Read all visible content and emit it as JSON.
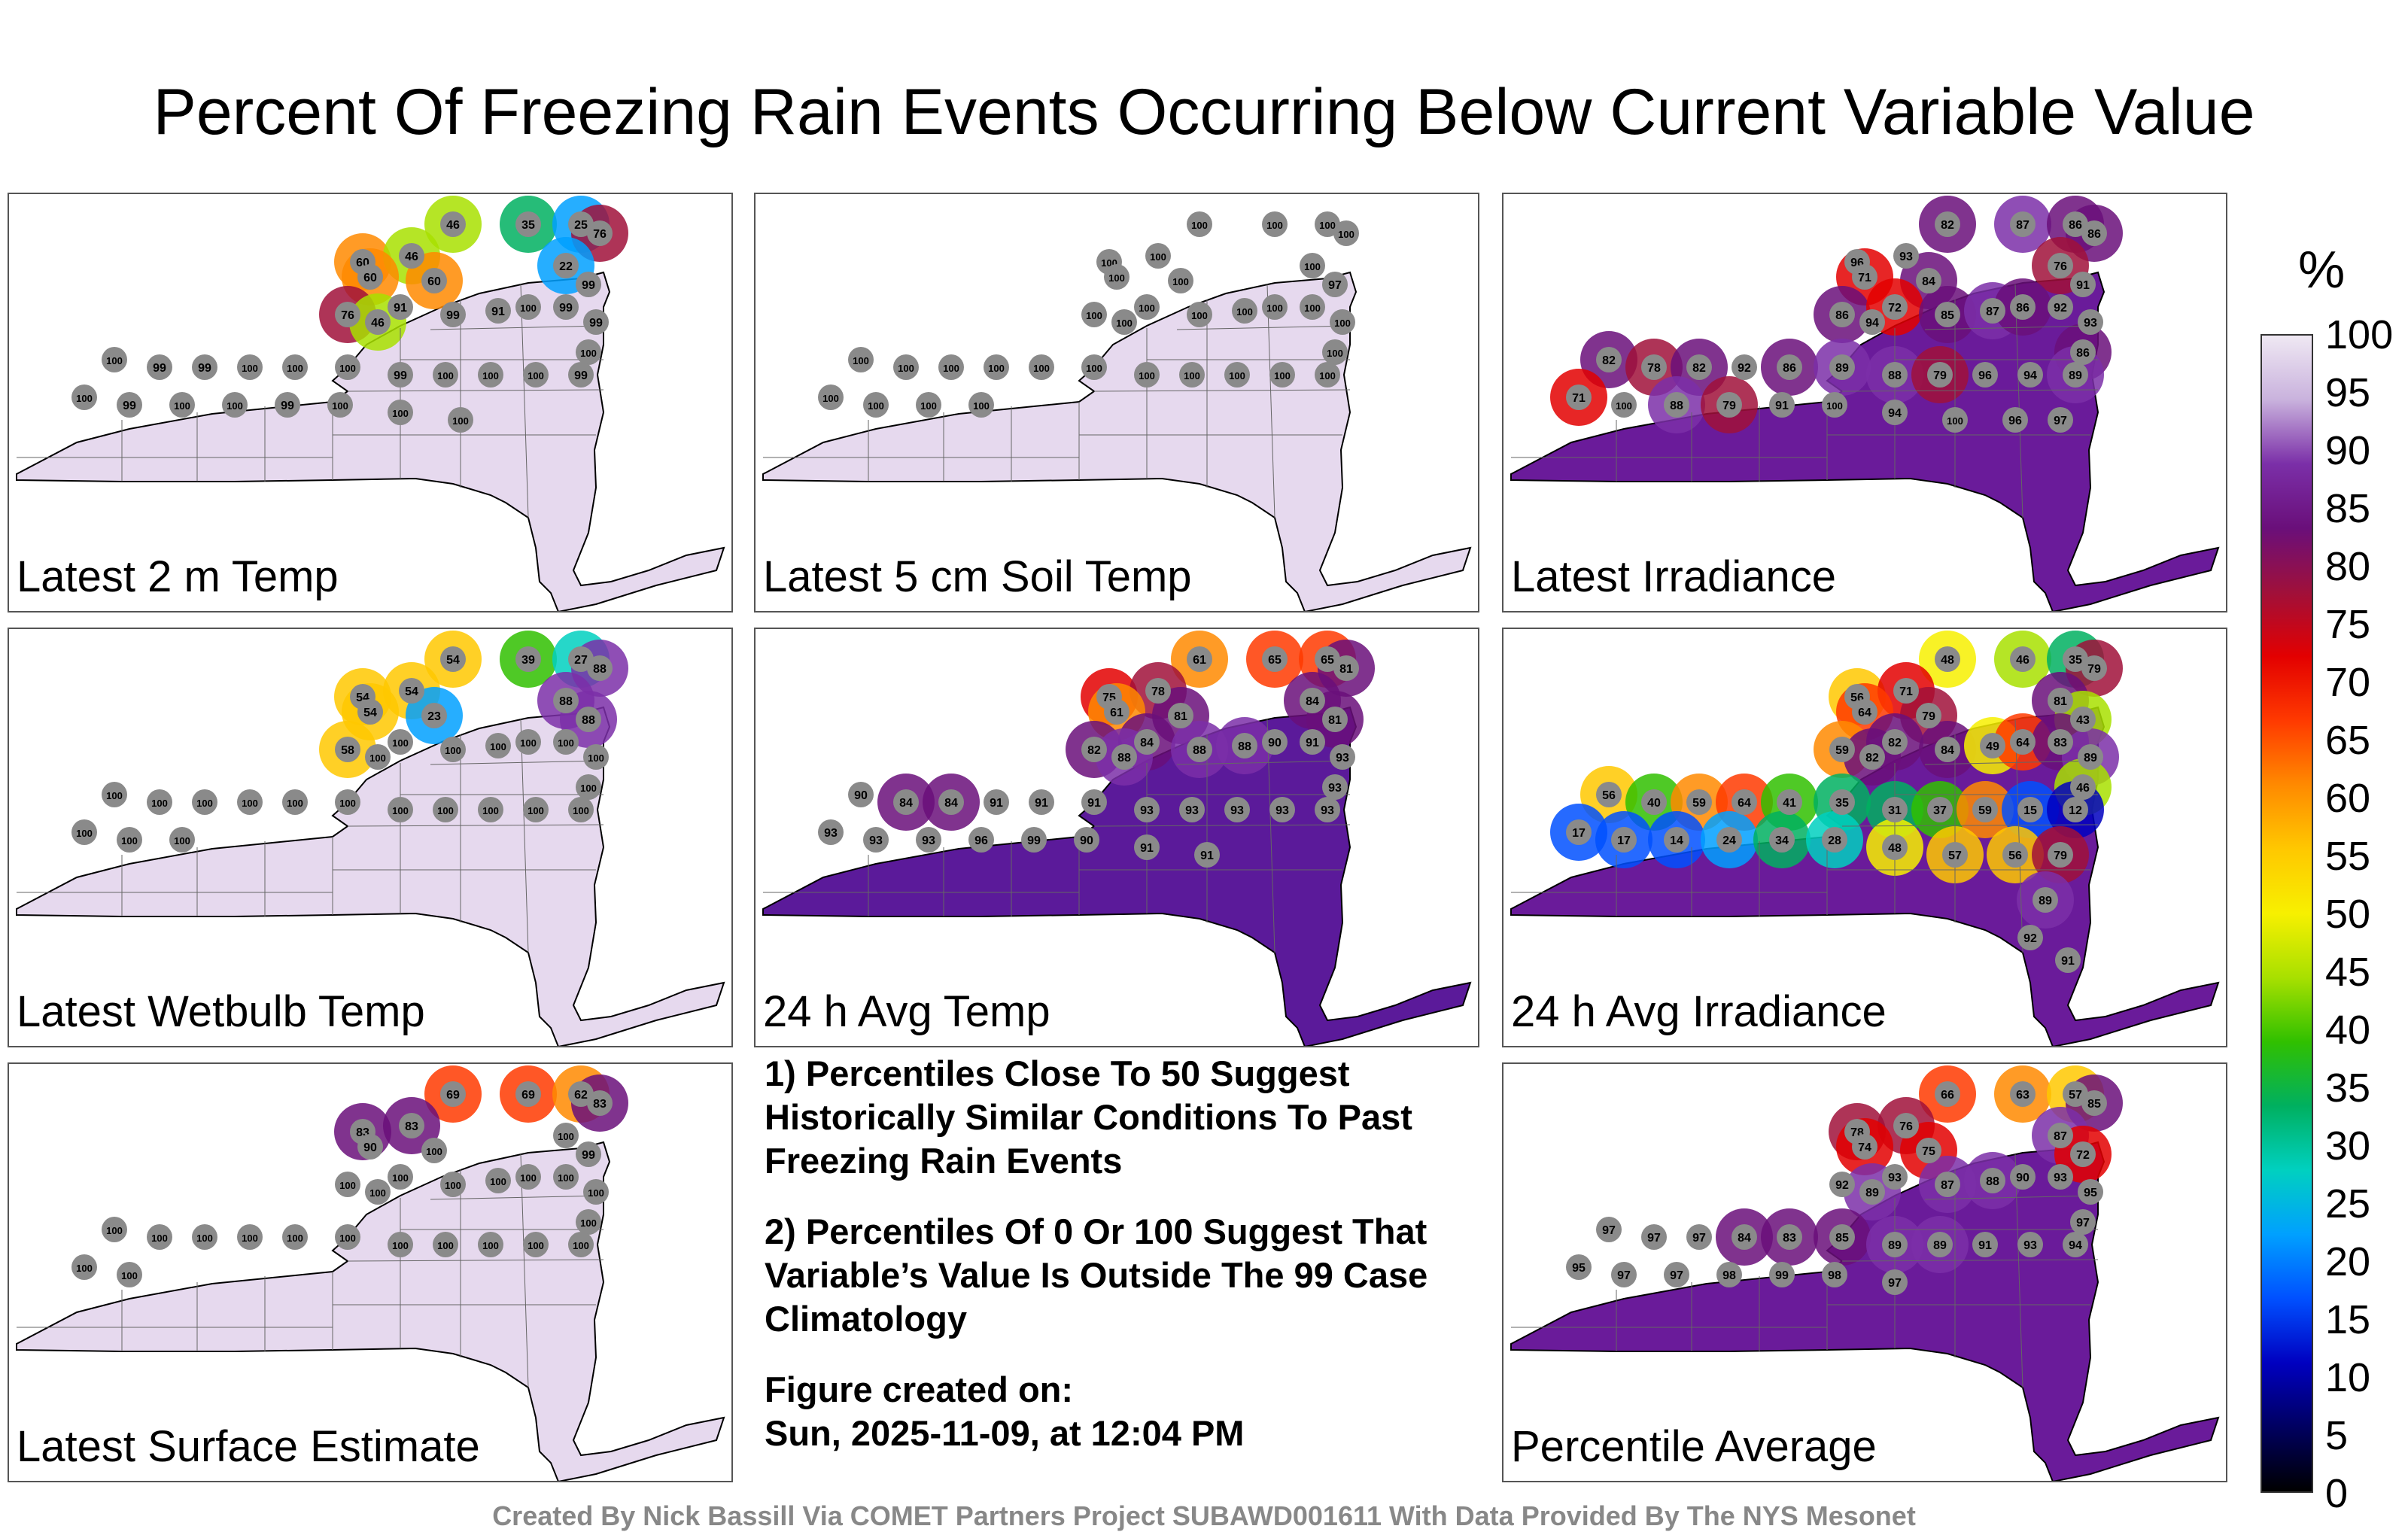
{
  "title": "Percent Of Freezing Rain Events Occurring Below Current Variable Value",
  "panels": [
    {
      "label": "Latest 2 m Temp",
      "fill": "#e6d9ee",
      "stations": [
        "46",
        "35",
        "25",
        "76",
        "60",
        "46",
        "60",
        "60",
        "22",
        "99",
        "76",
        "91",
        "46",
        "99",
        "91",
        "100",
        "99",
        "99",
        "100",
        "100",
        "99",
        "99",
        "100",
        "100",
        "100",
        "99",
        "100",
        "100",
        "100",
        "99",
        "100",
        "99",
        "100",
        "100",
        "99",
        "100",
        "100",
        "100"
      ]
    },
    {
      "label": "Latest 5 cm Soil Temp",
      "fill": "#e6d9ee",
      "stations": [
        "100",
        "100",
        "100",
        "100",
        "100",
        "100",
        "100",
        "100",
        "100",
        "97",
        "100",
        "100",
        "100",
        "100",
        "100",
        "100",
        "100",
        "100",
        "100",
        "100",
        "100",
        "100",
        "100",
        "100",
        "100",
        "100",
        "100",
        "100",
        "100",
        "100",
        "100",
        "100",
        "100",
        "100"
      ]
    },
    {
      "label": "Latest Irradiance",
      "fill": "#6a1b9a",
      "stations": [
        "82",
        "87",
        "86",
        "86",
        "96",
        "93",
        "71",
        "84",
        "76",
        "91",
        "86",
        "72",
        "94",
        "85",
        "87",
        "86",
        "92",
        "93",
        "86",
        "82",
        "78",
        "82",
        "92",
        "86",
        "89",
        "88",
        "79",
        "96",
        "94",
        "89",
        "71",
        "100",
        "88",
        "79",
        "91",
        "100",
        "94",
        "100",
        "96",
        "97"
      ]
    },
    {
      "label": "Latest Wetbulb Temp",
      "fill": "#e6d9ee",
      "stations": [
        "54",
        "39",
        "27",
        "88",
        "54",
        "54",
        "54",
        "23",
        "88",
        "88",
        "58",
        "100",
        "100",
        "100",
        "100",
        "100",
        "100",
        "100",
        "100",
        "100",
        "100",
        "100",
        "100",
        "100",
        "100",
        "100",
        "100",
        "100",
        "100",
        "100",
        "100",
        "100",
        "100"
      ]
    },
    {
      "label": "24 h Avg Temp",
      "fill": "#5b1a9a",
      "stations": [
        "61",
        "65",
        "65",
        "81",
        "75",
        "78",
        "61",
        "81",
        "84",
        "81",
        "82",
        "84",
        "88",
        "88",
        "88",
        "90",
        "91",
        "93",
        "93",
        "90",
        "84",
        "84",
        "91",
        "91",
        "91",
        "93",
        "93",
        "93",
        "93",
        "93",
        "93",
        "93",
        "93",
        "96",
        "99",
        "90",
        "91",
        "91"
      ]
    },
    {
      "label": "24 h Avg Irradiance",
      "fill": "#6a1b9a",
      "stations": [
        "48",
        "46",
        "35",
        "79",
        "56",
        "71",
        "64",
        "79",
        "81",
        "43",
        "59",
        "82",
        "82",
        "84",
        "49",
        "64",
        "83",
        "89",
        "46",
        "56",
        "40",
        "59",
        "64",
        "41",
        "35",
        "31",
        "37",
        "59",
        "15",
        "12",
        "17",
        "17",
        "14",
        "24",
        "34",
        "28",
        "48",
        "57",
        "56",
        "79",
        "89",
        "92",
        "91"
      ]
    },
    {
      "label": "Latest Surface Estimate",
      "fill": "#e6d9ee",
      "stations": [
        "69",
        "69",
        "62",
        "83",
        "83",
        "83",
        "90",
        "100",
        "100",
        "99",
        "100",
        "100",
        "100",
        "100",
        "100",
        "100",
        "100",
        "100",
        "100",
        "100",
        "100",
        "100",
        "100",
        "100",
        "100",
        "100",
        "100",
        "100",
        "100",
        "100",
        "100",
        "100"
      ]
    },
    {
      "label": "Percentile Average",
      "fill": "#6a1b9a",
      "stations": [
        "66",
        "63",
        "57",
        "85",
        "78",
        "76",
        "74",
        "75",
        "87",
        "72",
        "92",
        "93",
        "89",
        "87",
        "88",
        "90",
        "93",
        "95",
        "97",
        "97",
        "97",
        "97",
        "84",
        "83",
        "85",
        "89",
        "89",
        "91",
        "93",
        "94",
        "95",
        "97",
        "97",
        "98",
        "99",
        "98",
        "97"
      ]
    }
  ],
  "notes": {
    "line1": "1) Percentiles Close To 50 Suggest Historically Similar Conditions To Past Freezing Rain Events",
    "line2": "2) Percentiles Of 0 Or 100 Suggest That Variable’s Value Is Outside The 99 Case Climatology",
    "created_label": "Figure created on:",
    "created_date": "Sun, 2025-11-09, at 12:04 PM"
  },
  "colorbar": {
    "unit": "%",
    "ticks": [
      "100",
      "95",
      "90",
      "85",
      "80",
      "75",
      "70",
      "65",
      "60",
      "55",
      "50",
      "45",
      "40",
      "35",
      "30",
      "25",
      "20",
      "15",
      "10",
      "5",
      "0"
    ],
    "colors": [
      "#efe8f3",
      "#c9b2dd",
      "#7b2fa8",
      "#6a0f7a",
      "#a0103a",
      "#e30000",
      "#ff3a00",
      "#ff8a00",
      "#ffc800",
      "#f7f000",
      "#a8e000",
      "#30c000",
      "#00b060",
      "#00d0c0",
      "#00a0ff",
      "#0050ff",
      "#0000c0",
      "#000060",
      "#000000"
    ]
  },
  "credit": "Created By Nick Bassill Via COMET Partners Project SUBAWD001611 With Data Provided By The NYS Mesonet"
}
